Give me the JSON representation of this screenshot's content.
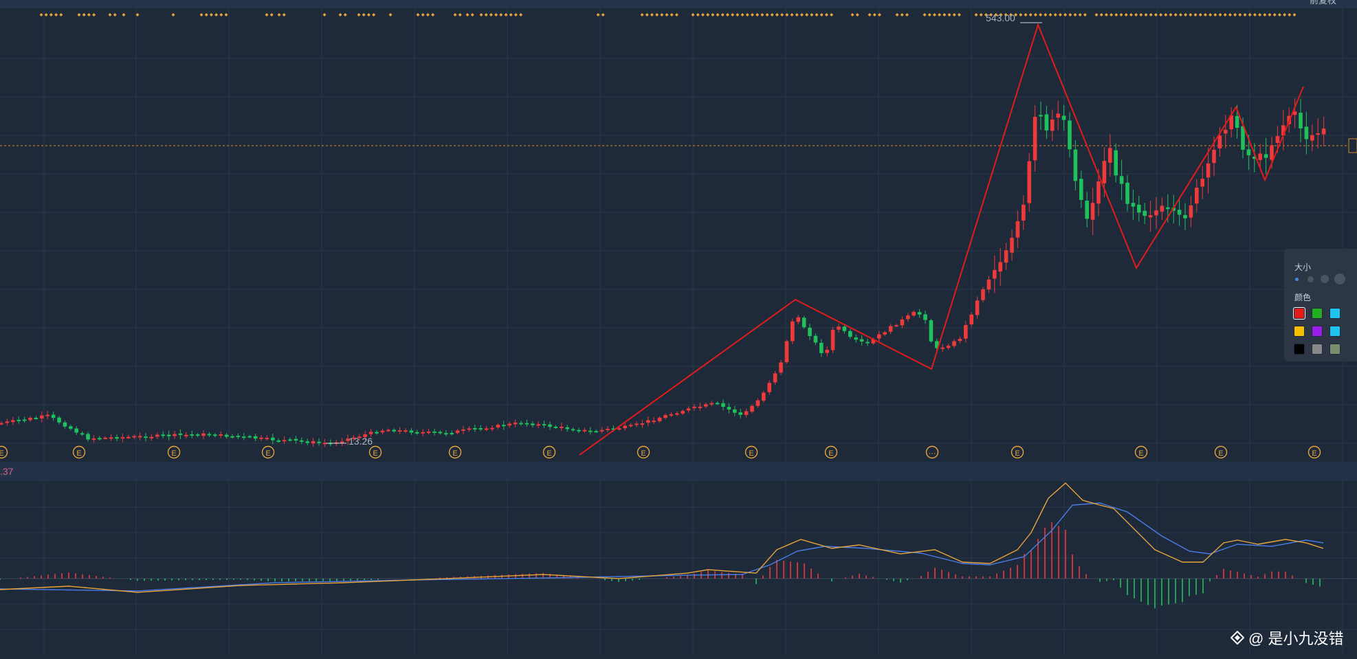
{
  "header": {
    "corner_text": "前复权"
  },
  "chart": {
    "high_label": "543.00",
    "low_label": "13.26",
    "indicator_value": ".37",
    "earnings_marker": "E",
    "other_marker": "···"
  },
  "colors": {
    "background": "#1e2a3a",
    "grid": "#2b3849",
    "up": "#ee3a3a",
    "down": "#1ec15c",
    "zigzag": "#e31b1b",
    "dif_line": "#e8a43a",
    "dea_line": "#4a7de8",
    "marker": "#e8a43a",
    "dashed_line": "#d98a2a"
  },
  "tool_panel": {
    "size_label": "大小",
    "color_label": "颜色",
    "colors": [
      "#e31b1b",
      "#22b022",
      "#1ec3f0",
      "#f5c000",
      "#9b1ee8",
      "#1ec3f0",
      "#000000",
      "#888888",
      "#7b8e6e"
    ]
  },
  "watermark": {
    "text": "@ 是小九没错",
    "icon": "diamond-logo-icon"
  }
}
